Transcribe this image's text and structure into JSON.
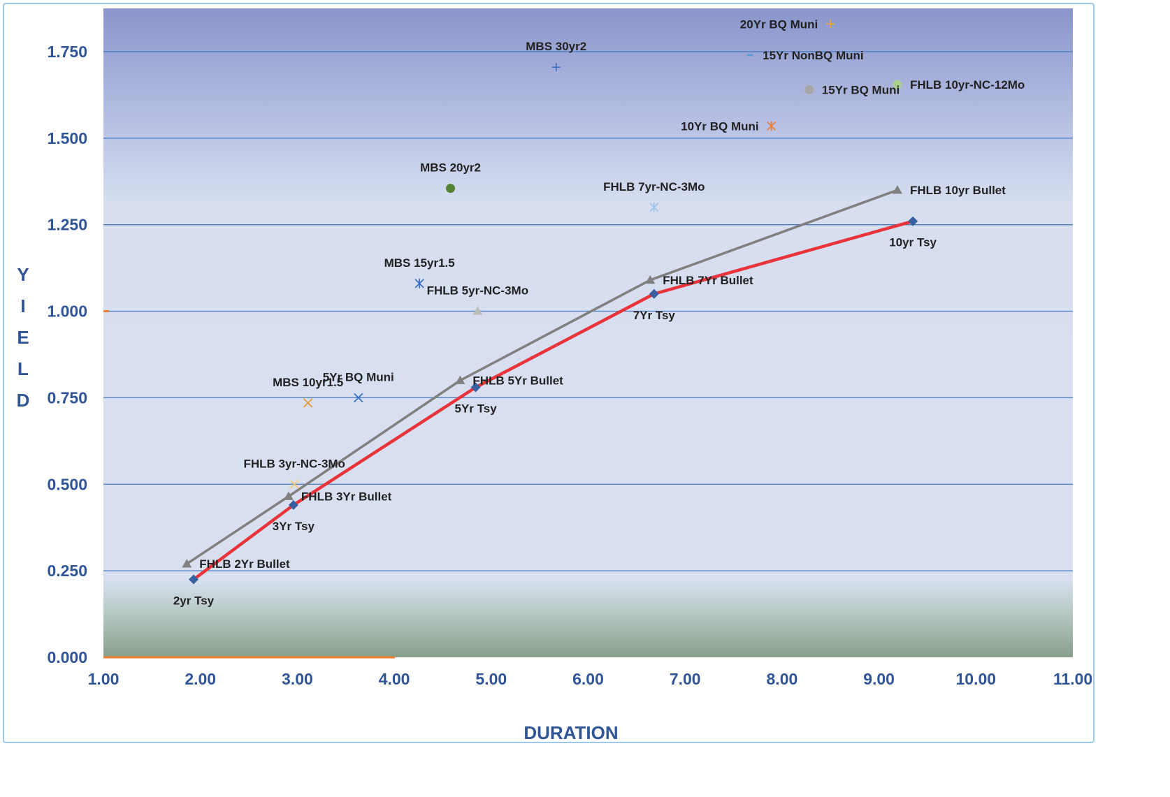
{
  "chart_data": {
    "type": "scatter",
    "xlabel": "DURATION",
    "ylabel": "YIELD",
    "xlim": [
      1.0,
      11.0
    ],
    "ylim": [
      0.0,
      1.875
    ],
    "x_ticks": [
      "1.00",
      "2.00",
      "3.00",
      "4.00",
      "5.00",
      "6.00",
      "7.00",
      "8.00",
      "9.00",
      "10.00",
      "11.00"
    ],
    "y_ticks": [
      "0.000",
      "0.250",
      "0.500",
      "0.750",
      "1.000",
      "1.250",
      "1.500",
      "1.750"
    ],
    "grid": "horizontal",
    "colors": {
      "plot_top": "#8a96cc",
      "plot_mid": "#d6def0",
      "plot_bottom": "#88a88a",
      "treasury": "#e8343a",
      "fhlb_bullet": "#808080",
      "grid": "#4a7cc4",
      "axis_text": "#2f5597"
    },
    "lines": [
      {
        "name": "Tsy",
        "color": "#e8343a",
        "marker": "diamond",
        "marker_color": "#3a5fa0",
        "points": [
          {
            "x": 1.93,
            "y": 0.225,
            "label": "2yr Tsy",
            "pos": "below"
          },
          {
            "x": 2.96,
            "y": 0.44,
            "label": "3Yr Tsy",
            "pos": "below"
          },
          {
            "x": 4.84,
            "y": 0.78,
            "label": "5Yr Tsy",
            "pos": "below"
          },
          {
            "x": 6.68,
            "y": 1.05,
            "label": "7Yr Tsy",
            "pos": "below"
          },
          {
            "x": 9.35,
            "y": 1.26,
            "label": "10yr Tsy",
            "pos": "below"
          }
        ]
      },
      {
        "name": "FHLB Bullet",
        "color": "#808080",
        "marker": "triangle",
        "marker_color": "#808080",
        "points": [
          {
            "x": 1.86,
            "y": 0.27,
            "label": "FHLB 2Yr Bullet",
            "pos": "right"
          },
          {
            "x": 2.91,
            "y": 0.465,
            "label": "FHLB 3Yr Bullet",
            "pos": "right"
          },
          {
            "x": 4.68,
            "y": 0.8,
            "label": "FHLB 5Yr Bullet",
            "pos": "right"
          },
          {
            "x": 6.64,
            "y": 1.09,
            "label": "FHLB 7Yr Bullet",
            "pos": "right"
          },
          {
            "x": 9.19,
            "y": 1.35,
            "label": "FHLB 10yr Bullet",
            "pos": "right"
          }
        ]
      }
    ],
    "points": [
      {
        "x": 3.11,
        "y": 0.735,
        "label": "MBS 10yr1.5",
        "marker": "x",
        "color": "#e39a3a",
        "pos": "above"
      },
      {
        "x": 3.63,
        "y": 0.75,
        "label": "5Yr BQ Muni",
        "marker": "x",
        "color": "#3a6fc4",
        "pos": "above"
      },
      {
        "x": 2.97,
        "y": 0.5,
        "label": "FHLB 3yr-NC-3Mo",
        "marker": "x",
        "color": "#f5c97a",
        "pos": "above"
      },
      {
        "x": 4.26,
        "y": 1.08,
        "label": "MBS 15yr1.5",
        "marker": "asterisk",
        "color": "#3a6fc4",
        "pos": "above"
      },
      {
        "x": 4.86,
        "y": 1.0,
        "label": "FHLB 5yr-NC-3Mo",
        "marker": "triangle",
        "color": "#bcbcbc",
        "pos": "above"
      },
      {
        "x": 4.58,
        "y": 1.355,
        "label": "MBS 20yr2",
        "marker": "circle",
        "color": "#548235",
        "pos": "above"
      },
      {
        "x": 5.67,
        "y": 1.705,
        "label": "MBS 30yr2",
        "marker": "plus",
        "color": "#3a6fc4",
        "pos": "above"
      },
      {
        "x": 6.68,
        "y": 1.3,
        "label": "FHLB 7yr-NC-3Mo",
        "marker": "asterisk",
        "color": "#9dc3e6",
        "pos": "above"
      },
      {
        "x": 7.89,
        "y": 1.535,
        "label": "10Yr BQ Muni",
        "marker": "asterisk",
        "color": "#ed7d31",
        "pos": "left"
      },
      {
        "x": 8.28,
        "y": 1.64,
        "label": "15Yr BQ Muni",
        "marker": "circle",
        "color": "#a6a6a6",
        "pos": "right"
      },
      {
        "x": 7.67,
        "y": 1.74,
        "label": "15Yr NonBQ Muni",
        "marker": "dash",
        "color": "#5b9bd5",
        "pos": "right"
      },
      {
        "x": 8.5,
        "y": 1.83,
        "label": "20Yr BQ Muni",
        "marker": "plus",
        "color": "#f0a830",
        "pos": "left"
      },
      {
        "x": 9.19,
        "y": 1.655,
        "label": "FHLB 10yr-NC-12Mo",
        "marker": "circle",
        "color": "#a9d18e",
        "pos": "right"
      }
    ]
  }
}
